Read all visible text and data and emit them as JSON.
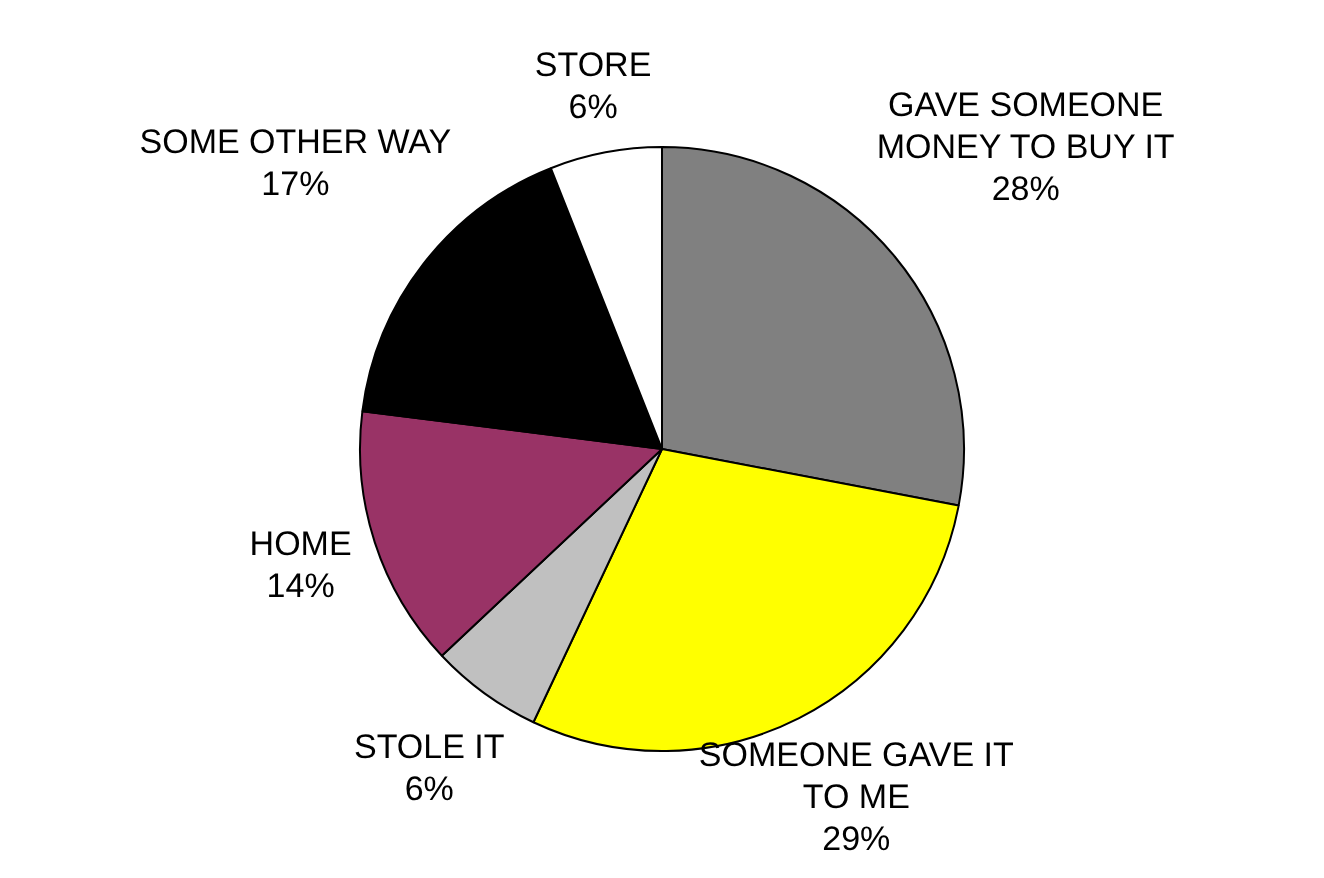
{
  "chart_data": {
    "type": "pie",
    "categories": [
      "GAVE SOMEONE MONEY TO BUY IT",
      "SOMEONE GAVE IT TO ME",
      "STOLE IT",
      "HOME",
      "SOME OTHER WAY",
      "STORE"
    ],
    "values": [
      28,
      29,
      6,
      14,
      17,
      6
    ],
    "colors": [
      "#808080",
      "#ffff00",
      "#c0c0c0",
      "#993366",
      "#000000",
      "#ffffff"
    ],
    "value_labels": [
      "28%",
      "29%",
      "6%",
      "14%",
      "17%",
      "6%"
    ],
    "legend": false
  }
}
